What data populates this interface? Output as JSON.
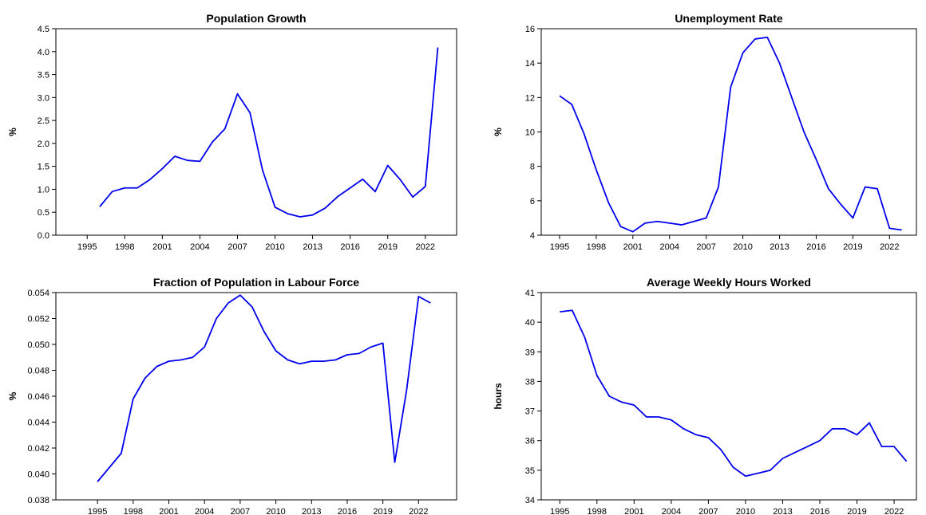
{
  "chart_data": [
    {
      "type": "line",
      "title": "Population Growth",
      "ylabel": "%",
      "x": [
        1996,
        1997,
        1998,
        1999,
        2000,
        2001,
        2002,
        2003,
        2004,
        2005,
        2006,
        2007,
        2008,
        2009,
        2010,
        2011,
        2012,
        2013,
        2014,
        2015,
        2016,
        2017,
        2018,
        2019,
        2020,
        2021,
        2022,
        2023
      ],
      "series": [
        {
          "color": "#0000ee",
          "values": [
            0.62,
            0.95,
            1.03,
            1.03,
            1.21,
            1.45,
            1.72,
            1.63,
            1.61,
            2.03,
            2.32,
            3.08,
            2.67,
            1.42,
            0.61,
            0.47,
            0.4,
            0.44,
            0.59,
            0.84,
            1.03,
            1.22,
            0.95,
            1.52,
            1.21,
            0.83,
            1.06,
            4.09
          ]
        }
      ],
      "xlim": [
        1992.5,
        2024.5
      ],
      "xticks": [
        1995,
        1998,
        2001,
        2004,
        2007,
        2010,
        2013,
        2016,
        2019,
        2022
      ],
      "ylim": [
        0,
        4.5
      ],
      "yticks": [
        {
          "value": 0,
          "label": "0.0"
        },
        0.5,
        {
          "value": 1,
          "label": "1.0"
        },
        1.5,
        {
          "value": 2,
          "label": "2.0"
        },
        2.5,
        {
          "value": 3,
          "label": "3.0"
        },
        3.5,
        {
          "value": 4,
          "label": "4.0"
        },
        4.5
      ]
    },
    {
      "type": "line",
      "title": "Unemployment Rate",
      "ylabel": "%",
      "x": [
        1995,
        1996,
        1997,
        1998,
        1999,
        2000,
        2001,
        2002,
        2003,
        2004,
        2005,
        2006,
        2007,
        2008,
        2009,
        2010,
        2011,
        2012,
        2013,
        2014,
        2015,
        2016,
        2017,
        2018,
        2019,
        2020,
        2021,
        2022,
        2023
      ],
      "series": [
        {
          "color": "#0000ee",
          "values": [
            12.1,
            11.6,
            9.9,
            7.8,
            5.9,
            4.5,
            4.2,
            4.7,
            4.8,
            4.7,
            4.6,
            4.8,
            5.0,
            6.8,
            12.6,
            14.6,
            15.4,
            15.5,
            14.0,
            12.0,
            10.0,
            8.4,
            6.7,
            5.8,
            5.0,
            6.8,
            6.7,
            4.4,
            4.3
          ]
        }
      ],
      "xlim": [
        1993.5,
        2024.2
      ],
      "xticks": [
        1995,
        1998,
        2001,
        2004,
        2007,
        2010,
        2013,
        2016,
        2019,
        2022
      ],
      "ylim": [
        4,
        16
      ],
      "yticks": [
        4,
        6,
        8,
        10,
        12,
        14,
        16
      ]
    },
    {
      "type": "line",
      "title": "Fraction of Population in Labour Force",
      "ylabel": "%",
      "x": [
        1995,
        1996,
        1997,
        1998,
        1999,
        2000,
        2001,
        2002,
        2003,
        2004,
        2005,
        2006,
        2007,
        2008,
        2009,
        2010,
        2011,
        2012,
        2013,
        2014,
        2015,
        2016,
        2017,
        2018,
        2019,
        2020,
        2021,
        2022,
        2023
      ],
      "series": [
        {
          "color": "#0000ee",
          "values": [
            0.0394,
            0.0405,
            0.0416,
            0.0458,
            0.0474,
            0.0483,
            0.0487,
            0.0488,
            0.049,
            0.0498,
            0.052,
            0.0532,
            0.0538,
            0.0529,
            0.051,
            0.0495,
            0.0488,
            0.0485,
            0.0487,
            0.0487,
            0.0488,
            0.0492,
            0.0493,
            0.0498,
            0.0501,
            0.0409,
            0.0465,
            0.0537,
            0.0532
          ]
        }
      ],
      "xlim": [
        1991.5,
        2025.2
      ],
      "xticks": [
        1995,
        1998,
        2001,
        2004,
        2007,
        2010,
        2013,
        2016,
        2019,
        2022
      ],
      "ylim": [
        0.038,
        0.054
      ],
      "yticks": [
        0.038,
        {
          "value": 0.04,
          "label": "0.040"
        },
        0.042,
        0.044,
        0.046,
        0.048,
        {
          "value": 0.05,
          "label": "0.050"
        },
        0.052,
        0.054
      ]
    },
    {
      "type": "line",
      "title": "Average Weekly Hours Worked",
      "ylabel": "hours",
      "x": [
        1995,
        1996,
        1997,
        1998,
        1999,
        2000,
        2001,
        2002,
        2003,
        2004,
        2005,
        2006,
        2007,
        2008,
        2009,
        2010,
        2011,
        2012,
        2013,
        2014,
        2015,
        2016,
        2017,
        2018,
        2019,
        2020,
        2021,
        2022,
        2023
      ],
      "series": [
        {
          "color": "#0000ee",
          "values": [
            40.35,
            40.4,
            39.5,
            38.2,
            37.5,
            37.3,
            37.2,
            36.8,
            36.8,
            36.7,
            36.4,
            36.2,
            36.1,
            35.7,
            35.1,
            34.8,
            34.9,
            35.0,
            35.4,
            35.6,
            35.8,
            36.0,
            36.4,
            36.4,
            36.2,
            36.6,
            35.8,
            35.8,
            35.3
          ]
        }
      ],
      "xlim": [
        1993.5,
        2023.8
      ],
      "xticks": [
        1995,
        1998,
        2001,
        2004,
        2007,
        2010,
        2013,
        2016,
        2019,
        2022
      ],
      "ylim": [
        34,
        41
      ],
      "yticks": [
        34,
        35,
        36,
        37,
        38,
        39,
        40,
        41
      ]
    }
  ]
}
